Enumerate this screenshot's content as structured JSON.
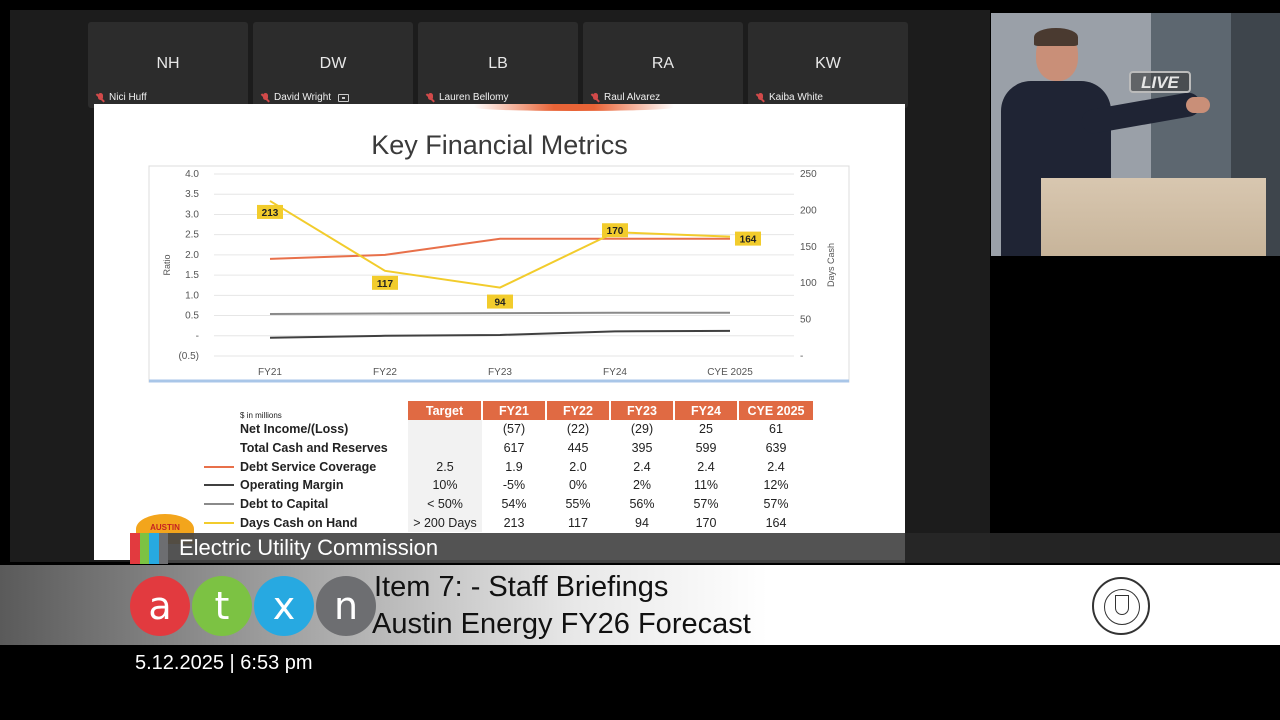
{
  "participants": [
    {
      "initials": "NH",
      "name": "Nici Huff",
      "camera": false
    },
    {
      "initials": "DW",
      "name": "David Wright",
      "camera": true
    },
    {
      "initials": "LB",
      "name": "Lauren Bellomy",
      "camera": false
    },
    {
      "initials": "RA",
      "name": "Raul Alvarez",
      "camera": false
    },
    {
      "initials": "KW",
      "name": "Kaiba White",
      "camera": false
    }
  ],
  "slide": {
    "title": "Key Financial Metrics",
    "logo_text": "AUSTIN ENERGY",
    "table": {
      "units_note": "$ in millions",
      "headers": [
        "Target",
        "FY21",
        "FY22",
        "FY23",
        "FY24",
        "CYE 2025"
      ],
      "rows": [
        {
          "label": "Net Income/(Loss)",
          "target": "",
          "values": [
            "(57)",
            "(22)",
            "(29)",
            "25",
            "61"
          ],
          "legend_color": ""
        },
        {
          "label": "Total Cash and Reserves",
          "target": "",
          "values": [
            "617",
            "445",
            "395",
            "599",
            "639"
          ],
          "legend_color": ""
        },
        {
          "label": "Debt Service Coverage",
          "target": "2.5",
          "values": [
            "1.9",
            "2.0",
            "2.4",
            "2.4",
            "2.4"
          ],
          "legend_color": "#e8704a"
        },
        {
          "label": "Operating Margin",
          "target": "10%",
          "values": [
            "-5%",
            "0%",
            "2%",
            "11%",
            "12%"
          ],
          "legend_color": "#404040"
        },
        {
          "label": "Debt to Capital",
          "target": "< 50%",
          "values": [
            "54%",
            "55%",
            "56%",
            "57%",
            "57%"
          ],
          "legend_color": "#8a8a8a"
        },
        {
          "label": "Days Cash on Hand",
          "target": "> 200 Days",
          "values": [
            "213",
            "117",
            "94",
            "170",
            "164"
          ],
          "legend_color": "#f2cc2c"
        }
      ]
    }
  },
  "chart_data": {
    "type": "line",
    "categories": [
      "FY21",
      "FY22",
      "FY23",
      "FY24",
      "CYE 2025"
    ],
    "ylabel": "Ratio",
    "y2label": "Days Cash",
    "ylim": [
      -0.5,
      4.0
    ],
    "y_ticks": [
      "(0.5)",
      "-",
      "0.5",
      "1.0",
      "1.5",
      "2.0",
      "2.5",
      "3.0",
      "3.5",
      "4.0"
    ],
    "y2lim": [
      0,
      250
    ],
    "y2_ticks": [
      "-",
      "50",
      "100",
      "150",
      "200",
      "250"
    ],
    "grid": true,
    "series": [
      {
        "name": "Debt Service Coverage",
        "axis": "left",
        "color": "#e8704a",
        "values": [
          1.9,
          2.0,
          2.4,
          2.4,
          2.4
        ]
      },
      {
        "name": "Operating Margin",
        "axis": "left",
        "color": "#404040",
        "values": [
          -0.05,
          0.0,
          0.02,
          0.11,
          0.12
        ]
      },
      {
        "name": "Debt to Capital",
        "axis": "left",
        "color": "#8a8a8a",
        "values": [
          0.54,
          0.55,
          0.56,
          0.57,
          0.57
        ]
      },
      {
        "name": "Days Cash on Hand",
        "axis": "right",
        "color": "#f2cc2c",
        "values": [
          213,
          117,
          94,
          170,
          164
        ],
        "labels": [
          "213",
          "117",
          "94",
          "170",
          "164"
        ]
      }
    ]
  },
  "lower_third": {
    "commission": "Electric Utility Commission",
    "atxn_letters": [
      "a",
      "t",
      "x",
      "n"
    ],
    "atxn_colors": [
      "#e23a3f",
      "#7cc243",
      "#27a9e1",
      "#6d6e71"
    ],
    "item_line": "Item 7: - Staff Briefings",
    "subtitle": "Austin Energy FY26 Forecast",
    "datetime": "5.12.2025 | 6:53 pm"
  },
  "camera": {
    "live_label": "LIVE"
  }
}
